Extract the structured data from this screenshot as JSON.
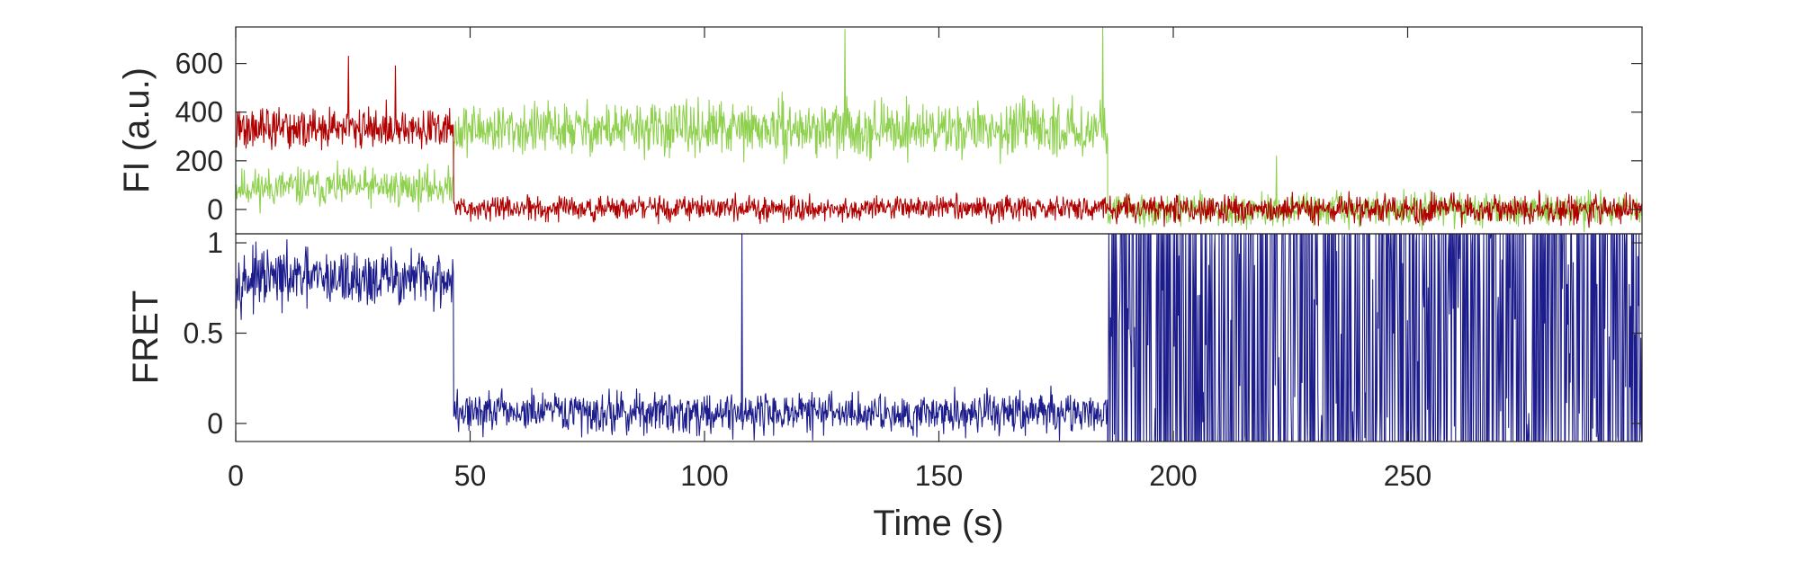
{
  "chart_data": [
    {
      "type": "line",
      "ylabel": "FI (a.u.)",
      "xlim": [
        0,
        300
      ],
      "ylim": [
        -100,
        750
      ],
      "yticks": [
        0,
        200,
        400,
        600
      ],
      "ytick_labels": [
        "0",
        "200",
        "400",
        "600"
      ],
      "series": [
        {
          "color": "#8fd14f",
          "segments": [
            {
              "x_start": 0,
              "x_end": 46.5,
              "mean": 90,
              "noise": 55
            },
            {
              "x_start": 46.5,
              "x_end": 186,
              "mean": 330,
              "noise": 75
            },
            {
              "x_start": 186,
              "x_end": 300,
              "mean": 0,
              "noise": 45
            }
          ],
          "spikes": [
            {
              "x": 130,
              "y": 740
            },
            {
              "x": 185,
              "y": 750
            },
            {
              "x": 222,
              "y": 220
            }
          ]
        },
        {
          "color": "#b00000",
          "segments": [
            {
              "x_start": 0,
              "x_end": 46.5,
              "mean": 330,
              "noise": 60
            },
            {
              "x_start": 46.5,
              "x_end": 186,
              "mean": 5,
              "noise": 35
            },
            {
              "x_start": 186,
              "x_end": 300,
              "mean": 0,
              "noise": 40
            }
          ],
          "spikes": [
            {
              "x": 24,
              "y": 630
            },
            {
              "x": 34,
              "y": 590
            }
          ]
        }
      ]
    },
    {
      "type": "line",
      "ylabel": "FRET",
      "xlabel": "Time (s)",
      "xlim": [
        0,
        300
      ],
      "ylim": [
        -0.1,
        1.05
      ],
      "xticks": [
        0,
        50,
        100,
        150,
        200,
        250
      ],
      "xtick_labels": [
        "0",
        "50",
        "100",
        "150",
        "200",
        "250"
      ],
      "yticks": [
        0,
        0.5,
        1
      ],
      "ytick_labels": [
        "0",
        "0.5",
        "1"
      ],
      "series": [
        {
          "color": "#1c1c8c",
          "segments": [
            {
              "x_start": 0,
              "x_end": 46.5,
              "mean": 0.8,
              "noise": 0.11
            },
            {
              "x_start": 46.5,
              "x_end": 186,
              "mean": 0.06,
              "noise": 0.08
            },
            {
              "x_start": 186,
              "x_end": 300,
              "mean": 0.5,
              "noise": 1.0,
              "clip": true
            }
          ],
          "spikes": [
            {
              "x": 108,
              "y": 1.05
            }
          ]
        }
      ]
    }
  ]
}
